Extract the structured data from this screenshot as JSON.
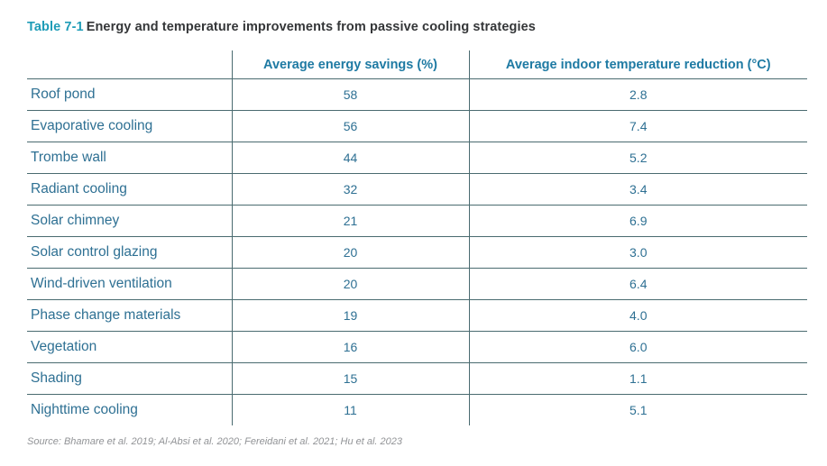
{
  "title": {
    "label": "Table 7-1",
    "text": "Energy and temperature improvements from passive cooling strategies"
  },
  "table": {
    "columns": [
      "",
      "Average energy savings (%)",
      "Average indoor temperature reduction (°C)"
    ],
    "rows": [
      {
        "strategy": "Roof pond",
        "energy_savings_pct": "58",
        "temp_reduction_c": "2.8"
      },
      {
        "strategy": "Evaporative cooling",
        "energy_savings_pct": "56",
        "temp_reduction_c": "7.4"
      },
      {
        "strategy": "Trombe wall",
        "energy_savings_pct": "44",
        "temp_reduction_c": "5.2"
      },
      {
        "strategy": "Radiant cooling",
        "energy_savings_pct": "32",
        "temp_reduction_c": "3.4"
      },
      {
        "strategy": "Solar chimney",
        "energy_savings_pct": "21",
        "temp_reduction_c": "6.9"
      },
      {
        "strategy": "Solar control glazing",
        "energy_savings_pct": "20",
        "temp_reduction_c": "3.0"
      },
      {
        "strategy": "Wind-driven ventilation",
        "energy_savings_pct": "20",
        "temp_reduction_c": "6.4"
      },
      {
        "strategy": "Phase change materials",
        "energy_savings_pct": "19",
        "temp_reduction_c": "4.0"
      },
      {
        "strategy": "Vegetation",
        "energy_savings_pct": "16",
        "temp_reduction_c": "6.0"
      },
      {
        "strategy": "Shading",
        "energy_savings_pct": "15",
        "temp_reduction_c": "1.1"
      },
      {
        "strategy": "Nighttime cooling",
        "energy_savings_pct": "11",
        "temp_reduction_c": "5.1"
      }
    ]
  },
  "source": "Source: Bhamare et al. 2019; Al-Absi et al. 2020; Fereidani et al. 2021; Hu et al. 2023",
  "colors": {
    "accent_teal": "#1f9cb7",
    "header_text": "#1e7aa3",
    "body_text": "#2e7093",
    "rule_line": "#4a6b70",
    "title_text": "#343638",
    "source_text": "#919396"
  }
}
